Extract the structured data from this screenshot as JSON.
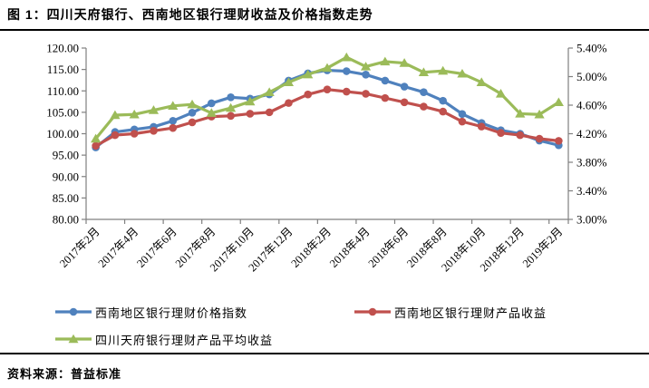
{
  "page": {
    "title": "图 1：四川天府银行、西南地区银行理财收益及价格指数走势",
    "source": "资料来源：普益标准"
  },
  "chart_data": {
    "type": "line",
    "title": "四川天府银行、西南地区银行理财收益及价格指数走势",
    "categories": [
      "2017年2月",
      "2017年3月",
      "2017年4月",
      "2017年5月",
      "2017年6月",
      "2017年7月",
      "2017年8月",
      "2017年9月",
      "2017年10月",
      "2017年11月",
      "2017年12月",
      "2018年1月",
      "2018年2月",
      "2018年3月",
      "2018年4月",
      "2018年5月",
      "2018年6月",
      "2018年7月",
      "2018年8月",
      "2018年9月",
      "2018年10月",
      "2018年11月",
      "2018年12月",
      "2019年1月",
      "2019年2月"
    ],
    "x_axis": {
      "label_every": 2,
      "shown_labels": [
        "2017年2月",
        "2017年4月",
        "2017年6月",
        "2017年8月",
        "2017年10月",
        "2017年12月",
        "2018年2月",
        "2018年4月",
        "2018年6月",
        "2018年8月",
        "2018年10月",
        "2018年12月",
        "2019年2月"
      ]
    },
    "left_axis": {
      "min": 80,
      "max": 120,
      "step": 5,
      "ticks": [
        "120.00",
        "115.00",
        "110.00",
        "105.00",
        "100.00",
        "95.00",
        "90.00",
        "85.00",
        "80.00"
      ]
    },
    "right_axis": {
      "min": 3.0,
      "max": 5.4,
      "step": 0.4,
      "ticks": [
        "5.40%",
        "5.00%",
        "4.60%",
        "4.20%",
        "3.80%",
        "3.40%",
        "3.00%"
      ]
    },
    "grid": "off",
    "legend_position": "bottom",
    "series": [
      {
        "name": "西南地区银行理财价格指数",
        "axis": "left",
        "color": "#4F81BD",
        "marker": "circle",
        "values": [
          96.8,
          100.4,
          101.0,
          101.6,
          103.0,
          104.9,
          107.1,
          108.5,
          108.2,
          109.2,
          112.4,
          114.1,
          114.8,
          114.6,
          113.8,
          112.4,
          111.0,
          109.7,
          107.7,
          104.6,
          102.5,
          100.8,
          100.0,
          98.4,
          97.3
        ]
      },
      {
        "name": "西南地区银行理财产品收益",
        "axis": "right",
        "color": "#C0504D",
        "marker": "circle",
        "values": [
          4.03,
          4.18,
          4.2,
          4.24,
          4.28,
          4.36,
          4.44,
          4.45,
          4.48,
          4.5,
          4.63,
          4.75,
          4.82,
          4.79,
          4.76,
          4.7,
          4.64,
          4.58,
          4.51,
          4.37,
          4.3,
          4.21,
          4.18,
          4.13,
          4.1
        ]
      },
      {
        "name": "四川天府银行理财产品平均收益",
        "axis": "right",
        "color": "#9BBB59",
        "marker": "triangle",
        "values": [
          4.13,
          4.46,
          4.47,
          4.53,
          4.59,
          4.61,
          4.49,
          4.56,
          4.65,
          4.78,
          4.92,
          5.03,
          5.12,
          5.27,
          5.14,
          5.21,
          5.19,
          5.06,
          5.08,
          5.04,
          4.92,
          4.76,
          4.48,
          4.47,
          4.64
        ]
      }
    ]
  }
}
